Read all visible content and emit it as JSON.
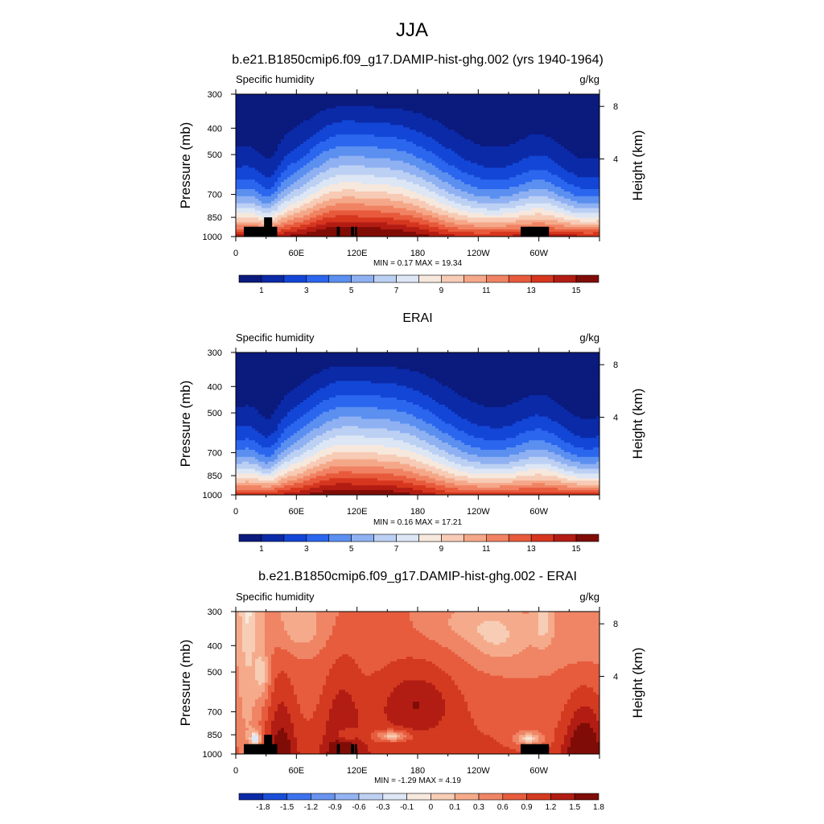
{
  "main_title": "JJA",
  "colors": {
    "full_palette": [
      "#0a1a7d",
      "#0b2aa8",
      "#1346d6",
      "#2b66ee",
      "#5b8ff0",
      "#8fb1f2",
      "#bcd0f4",
      "#dce6f5",
      "#f7e8dd",
      "#f7cbb5",
      "#f5a889",
      "#f08363",
      "#e85a3c",
      "#d6361e",
      "#b31c13",
      "#800c07"
    ],
    "diff_palette": [
      "#0b2aa8",
      "#1a4ed8",
      "#3c72ee",
      "#6893f0",
      "#94b3f2",
      "#bed1f4",
      "#dde7f5",
      "#f8e9de",
      "#f7cdb6",
      "#f5ab8b",
      "#ef8565",
      "#e65c3d",
      "#d33a20",
      "#b21d13",
      "#800c07"
    ],
    "topo": "#000000"
  },
  "panels": [
    {
      "title": "b.e21.B1850cmip6.f09_g17.DAMIP-hist-ghg.002 (yrs 1940-1964)",
      "left_label": "Specific humidity",
      "right_label": "g/kg",
      "min_max": "MIN =   0.17  MAX =  19.34",
      "colorbar_labels": [
        "1",
        "3",
        "5",
        "7",
        "9",
        "11",
        "13",
        "15"
      ],
      "field": "full",
      "topo": true
    },
    {
      "title": "ERAI",
      "left_label": "Specific humidity",
      "right_label": "g/kg",
      "min_max": "MIN =   0.16  MAX =  17.21",
      "colorbar_labels": [
        "1",
        "3",
        "5",
        "7",
        "9",
        "11",
        "13",
        "15"
      ],
      "field": "full_obs",
      "topo": false
    },
    {
      "title": "b.e21.B1850cmip6.f09_g17.DAMIP-hist-ghg.002 - ERAI",
      "left_label": "Specific humidity",
      "right_label": "g/kg",
      "min_max": "MIN =  -1.29  MAX =   4.19",
      "colorbar_labels": [
        "-1.8",
        "-1.5",
        "-1.2",
        "-0.9",
        "-0.6",
        "-0.3",
        "-0.1",
        "0",
        "0.1",
        "0.3",
        "0.6",
        "0.9",
        "1.2",
        "1.5",
        "1.8"
      ],
      "field": "diff",
      "topo": true
    }
  ],
  "chart_data": {
    "type": "heatmap",
    "xlabel": "",
    "ylabel": "Pressure (mb)",
    "y2label": "Height (km)",
    "x_ticks": [
      "0",
      "60E",
      "120E",
      "180",
      "120W",
      "60W"
    ],
    "x_range_deg": [
      0,
      360
    ],
    "y_ticks": [
      "300",
      "400",
      "500",
      "700",
      "850",
      "1000"
    ],
    "y_range_mb": [
      300,
      1000
    ],
    "y2_ticks": [
      "8",
      "4"
    ],
    "units": "g/kg",
    "full_levels": [
      1,
      2,
      3,
      4,
      5,
      6,
      7,
      8,
      9,
      10,
      11,
      12,
      13,
      14,
      15
    ],
    "diff_levels": [
      -1.8,
      -1.5,
      -1.2,
      -0.9,
      -0.6,
      -0.3,
      -0.1,
      0,
      0.1,
      0.3,
      0.6,
      0.9,
      1.2,
      1.5,
      1.8
    ]
  }
}
